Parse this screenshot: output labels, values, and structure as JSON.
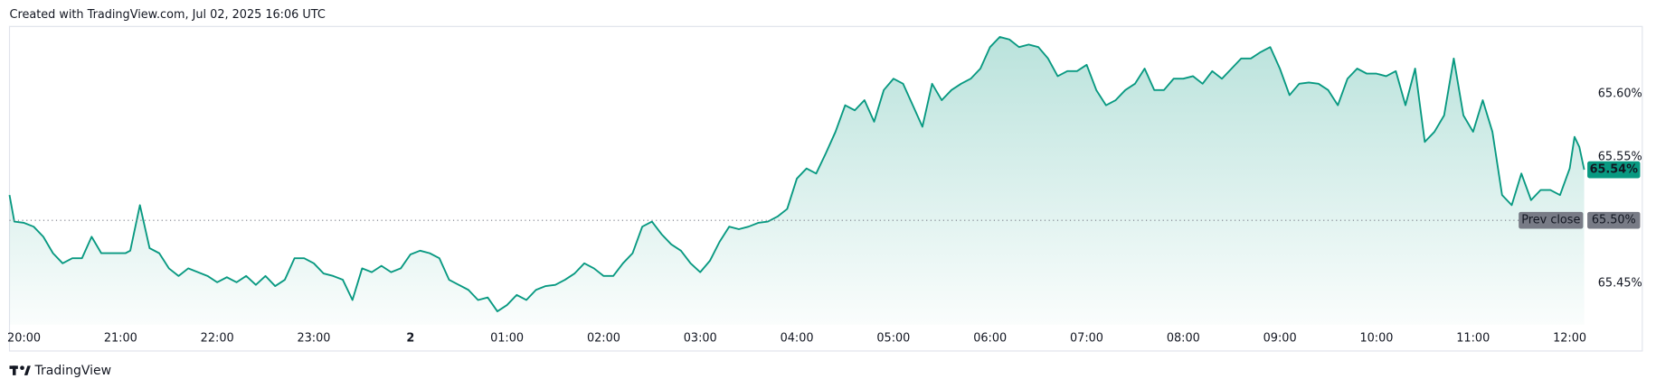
{
  "header": {
    "text": "Created with TradingView.com, Jul 02, 2025 16:06 UTC"
  },
  "chart_data": {
    "type": "area",
    "color": "#089981",
    "x": [
      -0.15,
      -0.1,
      0,
      0.1,
      0.2,
      0.3,
      0.4,
      0.5,
      0.6,
      0.7,
      0.8,
      0.9,
      1.0,
      1.05,
      1.1,
      1.2,
      1.3,
      1.4,
      1.5,
      1.6,
      1.7,
      1.8,
      1.9,
      2.0,
      2.1,
      2.2,
      2.3,
      2.4,
      2.5,
      2.6,
      2.7,
      2.8,
      2.9,
      3.0,
      3.1,
      3.2,
      3.3,
      3.4,
      3.5,
      3.6,
      3.7,
      3.8,
      3.9,
      4.0,
      4.1,
      4.2,
      4.3,
      4.4,
      4.5,
      4.6,
      4.7,
      4.8,
      4.9,
      5.0,
      5.1,
      5.2,
      5.3,
      5.4,
      5.5,
      5.6,
      5.7,
      5.8,
      5.9,
      6.0,
      6.1,
      6.2,
      6.3,
      6.4,
      6.5,
      6.6,
      6.7,
      6.8,
      6.9,
      7.0,
      7.1,
      7.2,
      7.3,
      7.4,
      7.5,
      7.6,
      7.7,
      7.8,
      7.9,
      8.0,
      8.1,
      8.2,
      8.3,
      8.4,
      8.5,
      8.6,
      8.7,
      8.8,
      8.9,
      9.0,
      9.1,
      9.2,
      9.3,
      9.4,
      9.5,
      9.6,
      9.7,
      9.8,
      9.9,
      10.0,
      10.1,
      10.2,
      10.3,
      10.4,
      10.5,
      10.6,
      10.7,
      10.8,
      10.9,
      11.0,
      11.1,
      11.2,
      11.3,
      11.4,
      11.5,
      11.6,
      11.7,
      11.8,
      11.9,
      12.0,
      12.1,
      12.2,
      12.3,
      12.4,
      12.5,
      12.6,
      12.7,
      12.8,
      12.9,
      13.0,
      13.1,
      13.2,
      13.3,
      13.4,
      13.5,
      13.6,
      13.7,
      13.8,
      13.9,
      14.0,
      14.1,
      14.2,
      14.3,
      14.4,
      14.5,
      14.6,
      14.7,
      14.8,
      14.9,
      15.0,
      15.1,
      15.2,
      15.3,
      15.4,
      15.5,
      15.6,
      15.7,
      15.8,
      15.9,
      16.0,
      16.05,
      16.1,
      16.15
    ],
    "values": [
      65.52,
      65.499,
      65.498,
      65.495,
      65.487,
      65.474,
      65.466,
      65.47,
      65.47,
      65.487,
      65.474,
      65.474,
      65.474,
      65.474,
      65.476,
      65.512,
      65.478,
      65.474,
      65.462,
      65.456,
      65.462,
      65.459,
      65.456,
      65.451,
      65.455,
      65.451,
      65.456,
      65.449,
      65.456,
      65.448,
      65.453,
      65.47,
      65.47,
      65.466,
      65.458,
      65.456,
      65.453,
      65.437,
      65.462,
      65.459,
      65.464,
      65.459,
      65.462,
      65.473,
      65.476,
      65.474,
      65.47,
      65.453,
      65.449,
      65.445,
      65.437,
      65.439,
      65.428,
      65.433,
      65.441,
      65.437,
      65.445,
      65.448,
      65.449,
      65.453,
      65.458,
      65.466,
      65.462,
      65.456,
      65.456,
      65.466,
      65.474,
      65.495,
      65.499,
      65.489,
      65.481,
      65.476,
      65.466,
      65.459,
      65.468,
      65.483,
      65.495,
      65.493,
      65.495,
      65.498,
      65.499,
      65.503,
      65.509,
      65.533,
      65.541,
      65.537,
      65.553,
      65.57,
      65.591,
      65.587,
      65.595,
      65.578,
      65.603,
      65.612,
      65.608,
      65.591,
      65.574,
      65.608,
      65.595,
      65.603,
      65.608,
      65.612,
      65.62,
      65.637,
      65.645,
      65.643,
      65.637,
      65.639,
      65.637,
      65.628,
      65.614,
      65.618,
      65.618,
      65.623,
      65.603,
      65.591,
      65.595,
      65.603,
      65.608,
      65.62,
      65.603,
      65.603,
      65.612,
      65.612,
      65.614,
      65.608,
      65.618,
      65.612,
      65.62,
      65.628,
      65.628,
      65.633,
      65.637,
      65.62,
      65.599,
      65.608,
      65.609,
      65.608,
      65.603,
      65.591,
      65.612,
      65.62,
      65.616,
      65.616,
      65.614,
      65.618,
      65.591,
      65.62,
      65.562,
      65.57,
      65.583,
      65.628,
      65.583,
      65.57,
      65.595,
      65.57,
      65.52,
      65.512,
      65.537,
      65.516,
      65.524,
      65.524,
      65.52,
      65.541,
      65.566,
      65.558,
      65.54
    ],
    "xlim": [
      -0.15,
      16.15
    ],
    "xticks": [
      {
        "value": 0,
        "label": "20:00"
      },
      {
        "value": 1,
        "label": "21:00"
      },
      {
        "value": 2,
        "label": "22:00"
      },
      {
        "value": 3,
        "label": "23:00"
      },
      {
        "value": 4,
        "label": "2"
      },
      {
        "value": 5,
        "label": "01:00"
      },
      {
        "value": 6,
        "label": "02:00"
      },
      {
        "value": 7,
        "label": "03:00"
      },
      {
        "value": 8,
        "label": "04:00"
      },
      {
        "value": 9,
        "label": "05:00"
      },
      {
        "value": 10,
        "label": "06:00"
      },
      {
        "value": 11,
        "label": "07:00"
      },
      {
        "value": 12,
        "label": "08:00"
      },
      {
        "value": 13,
        "label": "09:00"
      },
      {
        "value": 14,
        "label": "10:00"
      },
      {
        "value": 15,
        "label": "11:00"
      },
      {
        "value": 16,
        "label": "12:00"
      }
    ],
    "ylim": [
      65.4175,
      65.6533
    ],
    "yticks": [
      {
        "value": 65.45,
        "label": "65.45%"
      },
      {
        "value": 65.55,
        "label": "65.55%"
      },
      {
        "value": 65.6,
        "label": "65.60%"
      }
    ],
    "last_price": {
      "value": 65.54,
      "label": "65.54%"
    },
    "prev_close": {
      "name": "Prev close",
      "value": 65.5,
      "label": "65.50%"
    }
  },
  "footer": {
    "brand": "TradingView"
  }
}
